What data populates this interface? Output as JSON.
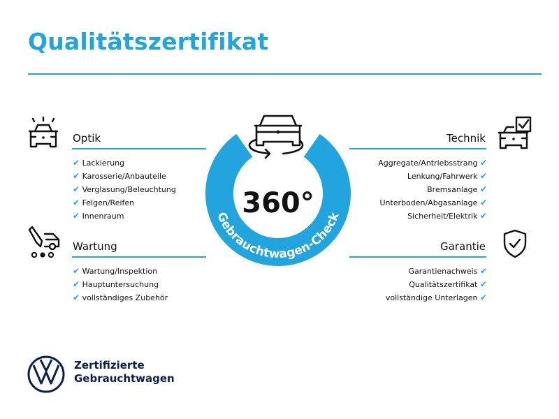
{
  "title": "Qualitätszertifikat",
  "colors": {
    "accent": "#22a5df",
    "text": "#111111",
    "brand_navy": "#0b1f4f"
  },
  "center": {
    "degrees": "360°",
    "ring_label": "Gebrauchtwagen-Check",
    "icon": "car-360-rotate-icon"
  },
  "sections": {
    "optik": {
      "title": "Optik",
      "icon": "car-lights-icon",
      "items": [
        "Lackierung",
        "Karosserie/Anbauteile",
        "Verglasung/Beleuchtung",
        "Felgen/Reifen",
        "Innenraum"
      ]
    },
    "wartung": {
      "title": "Wartung",
      "icon": "service-tools-icon",
      "items": [
        "Wartung/Inspektion",
        "Hauptuntersuchung",
        "vollständiges Zubehör"
      ]
    },
    "technik": {
      "title": "Technik",
      "icon": "car-checkbox-icon",
      "items": [
        "Aggregate/Antriebsstrang",
        "Lenkung/Fahrwerk",
        "Bremsanlage",
        "Unterboden/Abgasanlage",
        "Sicherheit/Elektrik"
      ]
    },
    "garantie": {
      "title": "Garantie",
      "icon": "shield-check-icon",
      "items": [
        "Garantienachweis",
        "Qualitätszertifikat",
        "vollständige Unterlagen"
      ]
    }
  },
  "check_glyph": "✔",
  "brand": {
    "line1": "Zertifizierte",
    "line2": "Gebrauchtwagen",
    "logo": "vw-logo"
  }
}
